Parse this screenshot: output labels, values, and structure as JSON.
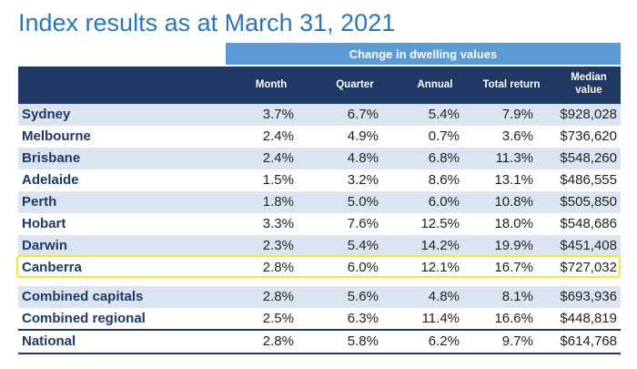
{
  "title": "Index results as at March 31, 2021",
  "subheader": "Change in dwelling values",
  "columns": {
    "month": "Month",
    "quarter": "Quarter",
    "annual": "Annual",
    "total": "Total return",
    "median_1": "Median",
    "median_2": "value"
  },
  "rows": [
    {
      "name": "Sydney",
      "month": "3.7%",
      "quarter": "6.7%",
      "annual": "5.4%",
      "total": "7.9%",
      "median": "$928,028"
    },
    {
      "name": "Melbourne",
      "month": "2.4%",
      "quarter": "4.9%",
      "annual": "0.7%",
      "total": "3.6%",
      "median": "$736,620"
    },
    {
      "name": "Brisbane",
      "month": "2.4%",
      "quarter": "4.8%",
      "annual": "6.8%",
      "total": "11.3%",
      "median": "$548,260"
    },
    {
      "name": "Adelaide",
      "month": "1.5%",
      "quarter": "3.2%",
      "annual": "8.6%",
      "total": "13.1%",
      "median": "$486,555"
    },
    {
      "name": "Perth",
      "month": "1.8%",
      "quarter": "5.0%",
      "annual": "6.0%",
      "total": "10.8%",
      "median": "$505,850"
    },
    {
      "name": "Hobart",
      "month": "3.3%",
      "quarter": "7.6%",
      "annual": "12.5%",
      "total": "18.0%",
      "median": "$548,686"
    },
    {
      "name": "Darwin",
      "month": "2.3%",
      "quarter": "5.4%",
      "annual": "14.2%",
      "total": "19.9%",
      "median": "$451,408"
    },
    {
      "name": "Canberra",
      "month": "2.8%",
      "quarter": "6.0%",
      "annual": "12.1%",
      "total": "16.7%",
      "median": "$727,032"
    },
    {
      "name": "Combined capitals",
      "month": "2.8%",
      "quarter": "5.6%",
      "annual": "4.8%",
      "total": "8.1%",
      "median": "$693,936"
    },
    {
      "name": "Combined regional",
      "month": "2.5%",
      "quarter": "6.3%",
      "annual": "11.4%",
      "total": "16.6%",
      "median": "$448,819"
    },
    {
      "name": "National",
      "month": "2.8%",
      "quarter": "5.8%",
      "annual": "6.2%",
      "total": "9.7%",
      "median": "$614,768"
    }
  ],
  "colors": {
    "title": "#2e75b6",
    "subheader_bg": "#5b9bd5",
    "header_bg": "#1f3864",
    "row_shade": "#dbe5f1",
    "highlight": "#f5e53b"
  }
}
